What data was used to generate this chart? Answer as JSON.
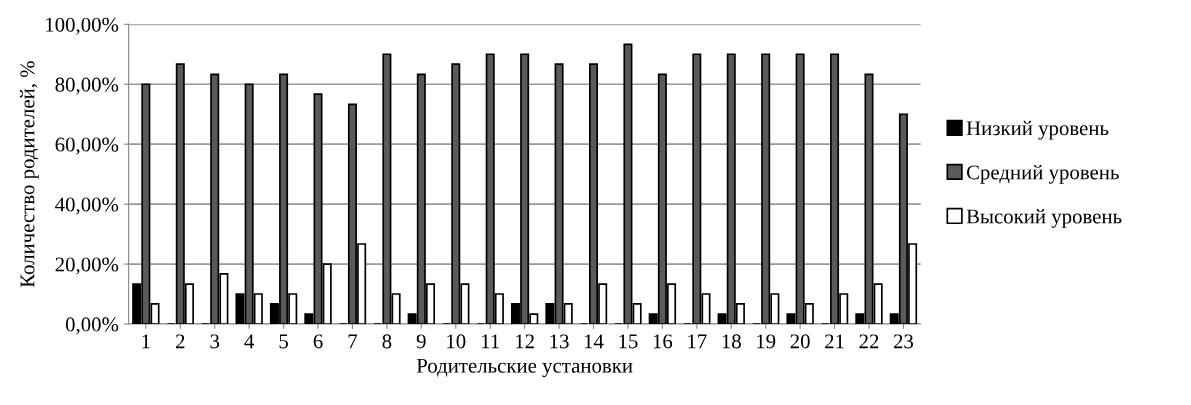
{
  "chart_data": {
    "type": "bar",
    "xlabel": "Родительские установки",
    "ylabel": "Количество родителей, %",
    "categories": [
      "1",
      "2",
      "3",
      "4",
      "5",
      "6",
      "7",
      "8",
      "9",
      "10",
      "11",
      "12",
      "13",
      "14",
      "15",
      "16",
      "17",
      "18",
      "19",
      "20",
      "21",
      "22",
      "23"
    ],
    "series": [
      {
        "name": "Низкий уровень",
        "color": "#000000",
        "values": [
          13.3,
          0,
          0,
          10,
          6.7,
          3.3,
          0,
          0,
          3.3,
          0,
          0,
          6.7,
          6.7,
          0,
          0,
          3.3,
          0,
          3.3,
          0,
          3.3,
          0,
          3.3,
          3.3
        ]
      },
      {
        "name": "Средний уровень",
        "color": "#5a5a5a",
        "values": [
          80,
          86.7,
          83.3,
          80,
          83.3,
          76.7,
          73.3,
          90,
          83.3,
          86.7,
          90,
          90,
          86.7,
          86.7,
          93.3,
          83.3,
          90,
          90,
          90,
          90,
          90,
          83.3,
          70
        ]
      },
      {
        "name": "Высокий уровень",
        "color": "#ffffff",
        "values": [
          6.7,
          13.3,
          16.7,
          10,
          10,
          20,
          26.7,
          10,
          13.3,
          13.3,
          10,
          3.3,
          6.7,
          13.3,
          6.7,
          13.3,
          10,
          6.7,
          10,
          6.7,
          10,
          13.3,
          26.7
        ]
      }
    ],
    "ylim": [
      0,
      100
    ],
    "yticks": [
      {
        "value": 0,
        "label": "0,00%"
      },
      {
        "value": 20,
        "label": "20,00%"
      },
      {
        "value": 40,
        "label": "40,00%"
      },
      {
        "value": 60,
        "label": "60,00%"
      },
      {
        "value": 80,
        "label": "80,00%"
      },
      {
        "value": 100,
        "label": "100,00%"
      }
    ],
    "grid": "y",
    "legend": "right"
  }
}
